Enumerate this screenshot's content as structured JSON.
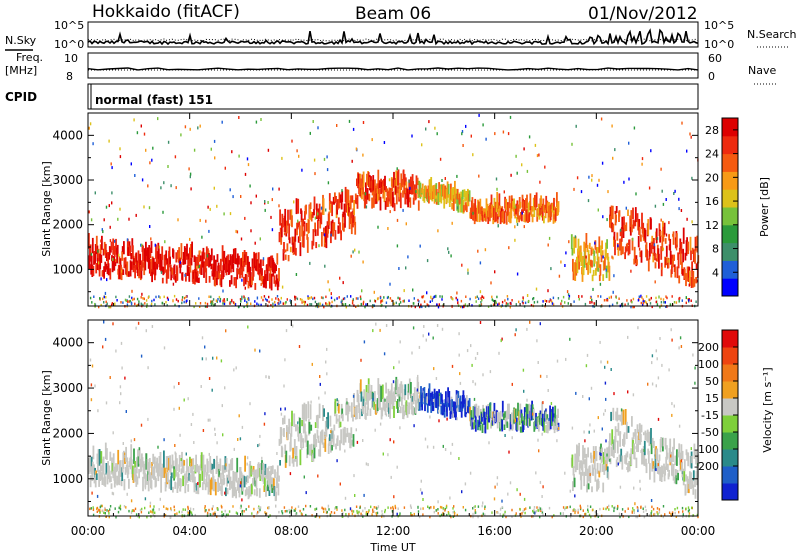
{
  "header": {
    "station": "Hokkaido (fitACF)",
    "beam": "Beam 06",
    "date": "01/Nov/2012"
  },
  "top_panels": {
    "nsky_label": "N.Sky",
    "nsearch_label": "N.Search",
    "freq_label": "Freq.",
    "freq_unit": "[MHz]",
    "nave_label": "Nave",
    "cpid_label": "CPID",
    "cpid_value": "normal (fast) 151",
    "noise_ticks": [
      "10^5",
      "10^0"
    ],
    "noise_ticks_right": [
      "10^5",
      "10^0"
    ],
    "freq_ticks": [
      "10",
      "8"
    ],
    "nave_ticks": [
      "60",
      "0"
    ]
  },
  "chart_data": [
    {
      "type": "heatmap",
      "name": "power",
      "ylabel": "Slant Range [km]",
      "ylim": [
        180,
        4500
      ],
      "yticks": [
        1000,
        2000,
        3000,
        4000
      ],
      "xlim": [
        0,
        24
      ],
      "colorbar_label": "Power [dB]",
      "colorbar_ticks": [
        "28",
        "24",
        "20",
        "16",
        "12",
        "8",
        "4"
      ],
      "colorbar_range": [
        0,
        30
      ],
      "colors": [
        "#0000ff",
        "#1f5fd8",
        "#3d8f6a",
        "#2a9a3a",
        "#77c23a",
        "#ddc21a",
        "#f79a16",
        "#f55a10",
        "#ee2a0e",
        "#dd0000"
      ]
    },
    {
      "type": "heatmap",
      "name": "velocity",
      "ylabel": "Slant Range [km]",
      "ylim": [
        180,
        4500
      ],
      "yticks": [
        1000,
        2000,
        3000,
        4000
      ],
      "xlim": [
        0,
        24
      ],
      "colorbar_label": "Velocity [m s⁻¹]",
      "colorbar_ticks": [
        "200",
        "100",
        "50",
        "15",
        "-15",
        "-50",
        "-100",
        "-200"
      ],
      "colors": [
        "#1022d0",
        "#1f5fc8",
        "#2a8a8a",
        "#3aa24a",
        "#7ed03a",
        "#c8c8c4",
        "#f0a020",
        "#f07818",
        "#ee4410",
        "#e00a0a"
      ]
    }
  ],
  "time_axis": {
    "xlabel": "Time UT",
    "ticks": [
      "00:00",
      "04:00",
      "08:00",
      "12:00",
      "16:00",
      "20:00",
      "00:00"
    ]
  }
}
